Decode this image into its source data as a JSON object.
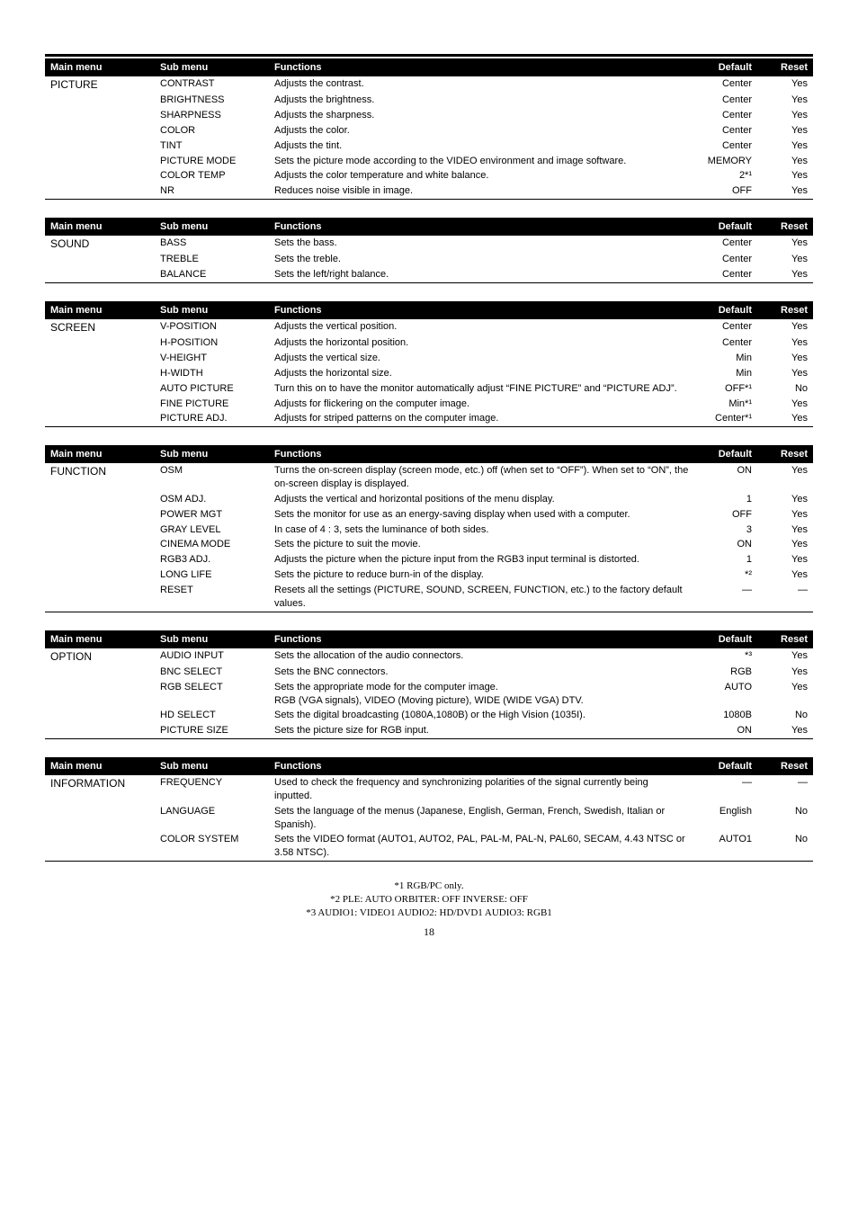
{
  "sections": [
    {
      "headers": [
        "Main menu",
        "Sub menu",
        "Functions",
        "Default",
        "Reset"
      ],
      "main": "PICTURE",
      "rows": [
        {
          "sub": "CONTRAST",
          "func": "Adjusts the contrast.",
          "def": "Center",
          "reset": "Yes"
        },
        {
          "sub": "BRIGHTNESS",
          "func": "Adjusts the brightness.",
          "def": "Center",
          "reset": "Yes"
        },
        {
          "sub": "SHARPNESS",
          "func": "Adjusts the sharpness.",
          "def": "Center",
          "reset": "Yes"
        },
        {
          "sub": "COLOR",
          "func": "Adjusts the color.",
          "def": "Center",
          "reset": "Yes"
        },
        {
          "sub": "TINT",
          "func": "Adjusts the tint.",
          "def": "Center",
          "reset": "Yes"
        },
        {
          "sub": "PICTURE MODE",
          "func": "Sets the picture mode according to the VIDEO environment and image software.",
          "def": "MEMORY",
          "reset": "Yes"
        },
        {
          "sub": "COLOR TEMP",
          "func": "Adjusts the color temperature and white balance.",
          "def": "2*¹",
          "reset": "Yes"
        },
        {
          "sub": "NR",
          "func": "Reduces noise visible in image.",
          "def": "OFF",
          "reset": "Yes"
        }
      ]
    },
    {
      "headers": [
        "Main menu",
        "Sub menu",
        "Functions",
        "Default",
        "Reset"
      ],
      "main": "SOUND",
      "rows": [
        {
          "sub": "BASS",
          "func": "Sets the bass.",
          "def": "Center",
          "reset": "Yes"
        },
        {
          "sub": "TREBLE",
          "func": "Sets the treble.",
          "def": "Center",
          "reset": "Yes"
        },
        {
          "sub": "BALANCE",
          "func": "Sets the left/right balance.",
          "def": "Center",
          "reset": "Yes"
        }
      ]
    },
    {
      "headers": [
        "Main menu",
        "Sub menu",
        "Functions",
        "Default",
        "Reset"
      ],
      "main": "SCREEN",
      "rows": [
        {
          "sub": "V-POSITION",
          "func": "Adjusts the vertical position.",
          "def": "Center",
          "reset": "Yes"
        },
        {
          "sub": "H-POSITION",
          "func": "Adjusts the horizontal position.",
          "def": "Center",
          "reset": "Yes"
        },
        {
          "sub": "V-HEIGHT",
          "func": "Adjusts the vertical size.",
          "def": "Min",
          "reset": "Yes"
        },
        {
          "sub": "H-WIDTH",
          "func": "Adjusts the horizontal size.",
          "def": "Min",
          "reset": "Yes"
        },
        {
          "sub": "AUTO PICTURE",
          "func": "Turn this on to have the monitor automatically adjust “FINE PICTURE” and “PICTURE ADJ”.",
          "def": "OFF*¹",
          "reset": "No"
        },
        {
          "sub": "FINE PICTURE",
          "func": "Adjusts for flickering on the computer image.",
          "def": "Min*¹",
          "reset": "Yes"
        },
        {
          "sub": "PICTURE ADJ.",
          "func": "Adjusts for striped patterns on the computer image.",
          "def": "Center*¹",
          "reset": "Yes"
        }
      ]
    },
    {
      "headers": [
        "Main menu",
        "Sub menu",
        "Functions",
        "Default",
        "Reset"
      ],
      "main": "FUNCTION",
      "rows": [
        {
          "sub": "OSM",
          "func": "Turns the on-screen display (screen mode, etc.) off (when set to “OFF”). When set to “ON”, the on-screen display is displayed.",
          "def": "ON",
          "reset": "Yes"
        },
        {
          "sub": "OSM ADJ.",
          "func": "Adjusts the vertical and horizontal positions of the menu display.",
          "def": "1",
          "reset": "Yes"
        },
        {
          "sub": "POWER MGT",
          "func": "Sets the monitor for use as an energy-saving display when used with a computer.",
          "def": "OFF",
          "reset": "Yes"
        },
        {
          "sub": "GRAY LEVEL",
          "func": "In case of 4 : 3, sets the luminance of both sides.",
          "def": "3",
          "reset": "Yes"
        },
        {
          "sub": "CINEMA MODE",
          "func": "Sets the picture to suit the movie.",
          "def": "ON",
          "reset": "Yes"
        },
        {
          "sub": "RGB3 ADJ.",
          "func": "Adjusts the picture when the picture input from the RGB3 input terminal is distorted.",
          "def": "1",
          "reset": "Yes"
        },
        {
          "sub": "LONG LIFE",
          "func": "Sets the picture to reduce burn-in of the display.",
          "def": "*²",
          "reset": "Yes"
        },
        {
          "sub": "RESET",
          "func": "Resets all the settings (PICTURE, SOUND, SCREEN, FUNCTION, etc.) to the factory default values.",
          "def": "—",
          "reset": "—"
        }
      ]
    },
    {
      "headers": [
        "Main menu",
        "Sub menu",
        "Functions",
        "Default",
        "Reset"
      ],
      "main": "OPTION",
      "rows": [
        {
          "sub": "AUDIO INPUT",
          "func": "Sets the allocation of the audio connectors.",
          "def": "*³",
          "reset": "Yes"
        },
        {
          "sub": "BNC SELECT",
          "func": "Sets the BNC connectors.",
          "def": "RGB",
          "reset": "Yes"
        },
        {
          "sub": "RGB SELECT",
          "func": "Sets the appropriate mode for the computer image.\nRGB (VGA signals), VIDEO (Moving picture), WIDE (WIDE VGA) DTV.",
          "def": "AUTO",
          "reset": "Yes"
        },
        {
          "sub": "HD SELECT",
          "func": "Sets the digital broadcasting (1080A,1080B) or the High Vision (1035I).",
          "def": "1080B",
          "reset": "No"
        },
        {
          "sub": "PICTURE SIZE",
          "func": "Sets the picture size for RGB input.",
          "def": "ON",
          "reset": "Yes"
        }
      ]
    },
    {
      "headers": [
        "Main menu",
        "Sub menu",
        "Functions",
        "Default",
        "Reset"
      ],
      "main": "INFORMATION",
      "rows": [
        {
          "sub": "FREQUENCY",
          "func": "Used to check the frequency and synchronizing polarities of the signal currently being inputted.",
          "def": "—",
          "reset": "—"
        },
        {
          "sub": "LANGUAGE",
          "func": "Sets the language of the menus (Japanese, English, German, French, Swedish, Italian or Spanish).",
          "def": "English",
          "reset": "No"
        },
        {
          "sub": "COLOR SYSTEM",
          "func": "Sets the VIDEO format (AUTO1, AUTO2, PAL, PAL-M, PAL-N, PAL60, SECAM, 4.43 NTSC or 3.58 NTSC).",
          "def": "AUTO1",
          "reset": "No"
        }
      ]
    }
  ],
  "footnotes": {
    "f1": "*1 RGB/PC only.",
    "f2": "*2 PLE: AUTO  ORBITER: OFF  INVERSE: OFF",
    "f3": "*3 AUDIO1: VIDEO1 AUDIO2: HD/DVD1 AUDIO3: RGB1"
  },
  "pagenum": "18"
}
